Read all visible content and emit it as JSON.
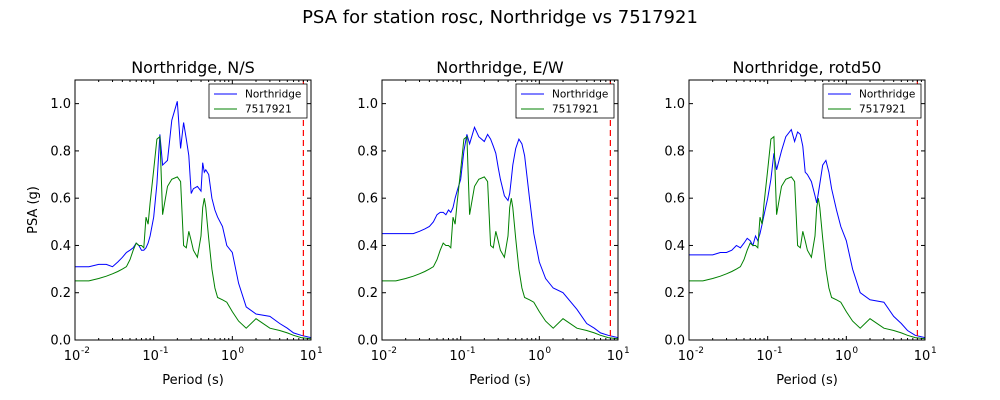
{
  "figure": {
    "title": "PSA for station rosc, Northridge vs 7517921"
  },
  "colors": {
    "series_1": "#0000ff",
    "series_2": "#008000",
    "marker_line": "#ff0000"
  },
  "chart_data": [
    {
      "type": "line",
      "title": "Northridge, N/S",
      "xlabel": "Period (s)",
      "ylabel": "PSA (g)",
      "xscale": "log",
      "xlim": [
        0.01,
        10
      ],
      "ylim": [
        0,
        1.1
      ],
      "yticks": [
        "0.0",
        "0.2",
        "0.4",
        "0.6",
        "0.8",
        "1.0"
      ],
      "xticks": [
        {
          "base": "10",
          "exp": "-2"
        },
        {
          "base": "10",
          "exp": "-1"
        },
        {
          "base": "10",
          "exp": "0"
        },
        {
          "base": "10",
          "exp": "1"
        }
      ],
      "vline_x": 8,
      "legend_loc": "upper-right",
      "series": [
        {
          "name": "Northridge",
          "x": [
            0.01,
            0.015,
            0.02,
            0.025,
            0.03,
            0.035,
            0.04,
            0.045,
            0.05,
            0.055,
            0.06,
            0.065,
            0.07,
            0.075,
            0.08,
            0.085,
            0.09,
            0.1,
            0.11,
            0.12,
            0.13,
            0.15,
            0.17,
            0.2,
            0.22,
            0.24,
            0.26,
            0.28,
            0.3,
            0.32,
            0.36,
            0.4,
            0.42,
            0.44,
            0.46,
            0.5,
            0.55,
            0.6,
            0.65,
            0.75,
            0.85,
            1.0,
            1.2,
            1.5,
            2.0,
            3.0,
            4.0,
            5.0,
            6.0,
            7.5,
            10.0
          ],
          "y": [
            0.31,
            0.31,
            0.32,
            0.32,
            0.31,
            0.33,
            0.35,
            0.37,
            0.38,
            0.39,
            0.41,
            0.4,
            0.38,
            0.38,
            0.39,
            0.41,
            0.44,
            0.52,
            0.66,
            0.87,
            0.74,
            0.76,
            0.93,
            1.01,
            0.81,
            0.92,
            0.85,
            0.78,
            0.62,
            0.64,
            0.65,
            0.63,
            0.75,
            0.71,
            0.72,
            0.7,
            0.6,
            0.55,
            0.52,
            0.48,
            0.4,
            0.37,
            0.24,
            0.14,
            0.11,
            0.1,
            0.07,
            0.05,
            0.03,
            0.02,
            0.01
          ]
        },
        {
          "name": "7517921",
          "x": [
            0.01,
            0.015,
            0.02,
            0.025,
            0.03,
            0.035,
            0.04,
            0.045,
            0.05,
            0.055,
            0.06,
            0.065,
            0.07,
            0.075,
            0.08,
            0.085,
            0.09,
            0.1,
            0.11,
            0.12,
            0.13,
            0.15,
            0.17,
            0.2,
            0.22,
            0.24,
            0.26,
            0.28,
            0.3,
            0.32,
            0.36,
            0.4,
            0.42,
            0.44,
            0.46,
            0.5,
            0.55,
            0.6,
            0.65,
            0.75,
            0.85,
            1.0,
            1.2,
            1.5,
            2.0,
            3.0,
            4.0,
            5.0,
            6.0,
            7.5,
            10.0
          ],
          "y": [
            0.25,
            0.25,
            0.26,
            0.27,
            0.28,
            0.29,
            0.3,
            0.31,
            0.34,
            0.38,
            0.41,
            0.4,
            0.4,
            0.39,
            0.52,
            0.49,
            0.58,
            0.72,
            0.85,
            0.86,
            0.53,
            0.65,
            0.68,
            0.69,
            0.67,
            0.4,
            0.39,
            0.46,
            0.42,
            0.38,
            0.35,
            0.44,
            0.56,
            0.6,
            0.56,
            0.43,
            0.3,
            0.22,
            0.18,
            0.17,
            0.16,
            0.12,
            0.08,
            0.05,
            0.09,
            0.05,
            0.04,
            0.03,
            0.02,
            0.01,
            0.005
          ]
        }
      ]
    },
    {
      "type": "line",
      "title": "Northridge, E/W",
      "xlabel": "Period (s)",
      "ylabel": "",
      "xscale": "log",
      "xlim": [
        0.01,
        10
      ],
      "ylim": [
        0,
        1.1
      ],
      "yticks": [
        "0.0",
        "0.2",
        "0.4",
        "0.6",
        "0.8",
        "1.0"
      ],
      "xticks": [
        {
          "base": "10",
          "exp": "-2"
        },
        {
          "base": "10",
          "exp": "-1"
        },
        {
          "base": "10",
          "exp": "0"
        },
        {
          "base": "10",
          "exp": "1"
        }
      ],
      "vline_x": 8,
      "legend_loc": "upper-right",
      "series": [
        {
          "name": "Northridge",
          "x": [
            0.01,
            0.015,
            0.02,
            0.025,
            0.03,
            0.035,
            0.04,
            0.045,
            0.05,
            0.055,
            0.06,
            0.065,
            0.07,
            0.075,
            0.08,
            0.085,
            0.09,
            0.1,
            0.11,
            0.12,
            0.13,
            0.15,
            0.17,
            0.2,
            0.22,
            0.24,
            0.26,
            0.28,
            0.3,
            0.32,
            0.36,
            0.4,
            0.42,
            0.44,
            0.46,
            0.5,
            0.55,
            0.6,
            0.65,
            0.75,
            0.85,
            1.0,
            1.2,
            1.5,
            2.0,
            3.0,
            4.0,
            5.0,
            6.0,
            7.5,
            10.0
          ],
          "y": [
            0.45,
            0.45,
            0.45,
            0.45,
            0.46,
            0.47,
            0.48,
            0.5,
            0.53,
            0.54,
            0.54,
            0.53,
            0.55,
            0.54,
            0.56,
            0.6,
            0.63,
            0.68,
            0.8,
            0.87,
            0.83,
            0.9,
            0.86,
            0.84,
            0.87,
            0.85,
            0.82,
            0.79,
            0.73,
            0.68,
            0.61,
            0.59,
            0.62,
            0.68,
            0.74,
            0.81,
            0.85,
            0.83,
            0.78,
            0.6,
            0.45,
            0.33,
            0.26,
            0.22,
            0.2,
            0.13,
            0.07,
            0.05,
            0.03,
            0.02,
            0.01
          ]
        },
        {
          "name": "7517921",
          "x": [
            0.01,
            0.015,
            0.02,
            0.025,
            0.03,
            0.035,
            0.04,
            0.045,
            0.05,
            0.055,
            0.06,
            0.065,
            0.07,
            0.075,
            0.08,
            0.085,
            0.09,
            0.1,
            0.11,
            0.12,
            0.13,
            0.15,
            0.17,
            0.2,
            0.22,
            0.24,
            0.26,
            0.28,
            0.3,
            0.32,
            0.36,
            0.4,
            0.42,
            0.44,
            0.46,
            0.5,
            0.55,
            0.6,
            0.65,
            0.75,
            0.85,
            1.0,
            1.2,
            1.5,
            2.0,
            3.0,
            4.0,
            5.0,
            6.0,
            7.5,
            10.0
          ],
          "y": [
            0.25,
            0.25,
            0.26,
            0.27,
            0.28,
            0.29,
            0.3,
            0.31,
            0.34,
            0.38,
            0.41,
            0.4,
            0.4,
            0.39,
            0.52,
            0.49,
            0.58,
            0.72,
            0.85,
            0.86,
            0.53,
            0.65,
            0.68,
            0.69,
            0.67,
            0.4,
            0.39,
            0.46,
            0.42,
            0.38,
            0.35,
            0.44,
            0.56,
            0.6,
            0.56,
            0.43,
            0.3,
            0.22,
            0.18,
            0.17,
            0.16,
            0.12,
            0.08,
            0.05,
            0.09,
            0.05,
            0.04,
            0.03,
            0.02,
            0.01,
            0.005
          ]
        }
      ]
    },
    {
      "type": "line",
      "title": "Northridge, rotd50",
      "xlabel": "Period (s)",
      "ylabel": "",
      "xscale": "log",
      "xlim": [
        0.01,
        10
      ],
      "ylim": [
        0,
        1.1
      ],
      "yticks": [
        "0.0",
        "0.2",
        "0.4",
        "0.6",
        "0.8",
        "1.0"
      ],
      "xticks": [
        {
          "base": "10",
          "exp": "-2"
        },
        {
          "base": "10",
          "exp": "-1"
        },
        {
          "base": "10",
          "exp": "0"
        },
        {
          "base": "10",
          "exp": "1"
        }
      ],
      "vline_x": 8,
      "legend_loc": "upper-right",
      "series": [
        {
          "name": "Northridge",
          "x": [
            0.01,
            0.015,
            0.02,
            0.025,
            0.03,
            0.035,
            0.04,
            0.045,
            0.05,
            0.055,
            0.06,
            0.065,
            0.07,
            0.075,
            0.08,
            0.085,
            0.09,
            0.1,
            0.11,
            0.12,
            0.13,
            0.15,
            0.17,
            0.2,
            0.22,
            0.24,
            0.26,
            0.28,
            0.3,
            0.32,
            0.36,
            0.4,
            0.42,
            0.44,
            0.46,
            0.5,
            0.55,
            0.6,
            0.65,
            0.75,
            0.85,
            1.0,
            1.2,
            1.5,
            2.0,
            3.0,
            4.0,
            5.0,
            6.0,
            7.5,
            10.0
          ],
          "y": [
            0.36,
            0.36,
            0.36,
            0.37,
            0.37,
            0.38,
            0.4,
            0.39,
            0.41,
            0.43,
            0.42,
            0.4,
            0.44,
            0.42,
            0.45,
            0.49,
            0.53,
            0.6,
            0.68,
            0.79,
            0.72,
            0.8,
            0.86,
            0.89,
            0.84,
            0.88,
            0.87,
            0.82,
            0.71,
            0.7,
            0.67,
            0.61,
            0.58,
            0.62,
            0.66,
            0.74,
            0.76,
            0.71,
            0.64,
            0.55,
            0.48,
            0.42,
            0.3,
            0.2,
            0.17,
            0.16,
            0.1,
            0.07,
            0.04,
            0.02,
            0.01
          ]
        },
        {
          "name": "7517921",
          "x": [
            0.01,
            0.015,
            0.02,
            0.025,
            0.03,
            0.035,
            0.04,
            0.045,
            0.05,
            0.055,
            0.06,
            0.065,
            0.07,
            0.075,
            0.08,
            0.085,
            0.09,
            0.1,
            0.11,
            0.12,
            0.13,
            0.15,
            0.17,
            0.2,
            0.22,
            0.24,
            0.26,
            0.28,
            0.3,
            0.32,
            0.36,
            0.4,
            0.42,
            0.44,
            0.46,
            0.5,
            0.55,
            0.6,
            0.65,
            0.75,
            0.85,
            1.0,
            1.2,
            1.5,
            2.0,
            3.0,
            4.0,
            5.0,
            6.0,
            7.5,
            10.0
          ],
          "y": [
            0.25,
            0.25,
            0.26,
            0.27,
            0.28,
            0.29,
            0.3,
            0.31,
            0.34,
            0.38,
            0.41,
            0.4,
            0.4,
            0.39,
            0.52,
            0.49,
            0.58,
            0.72,
            0.85,
            0.86,
            0.53,
            0.65,
            0.68,
            0.69,
            0.67,
            0.4,
            0.39,
            0.46,
            0.42,
            0.38,
            0.35,
            0.44,
            0.56,
            0.6,
            0.56,
            0.43,
            0.3,
            0.22,
            0.18,
            0.17,
            0.16,
            0.12,
            0.08,
            0.05,
            0.09,
            0.05,
            0.04,
            0.03,
            0.02,
            0.01,
            0.005
          ]
        }
      ]
    }
  ]
}
